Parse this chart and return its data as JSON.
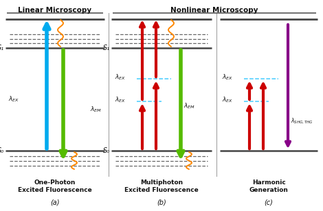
{
  "title_linear": "Linear Microscopy",
  "title_nonlinear": "Nonlinear Microscopy",
  "subtitle_a": "One-Photon\nExcited Fluorescence",
  "subtitle_b": "Multiphoton\nExcited Fluorescence",
  "subtitle_c": "Harmonic\nGeneration",
  "label_a": "(a)",
  "label_b": "(b)",
  "label_c": "(c)",
  "bg_color": "#ffffff",
  "s0_label": "S₀",
  "s1_label": "S₁",
  "cyan_color": "#00AAEE",
  "green_color": "#55BB00",
  "red_color": "#CC0000",
  "orange_color": "#FF8800",
  "purple_color": "#880088",
  "cyan_dash_color": "#44CCFF",
  "level_color": "#444444",
  "dash_color": "#666666",
  "sep_color": "#999999",
  "text_color": "#111111"
}
